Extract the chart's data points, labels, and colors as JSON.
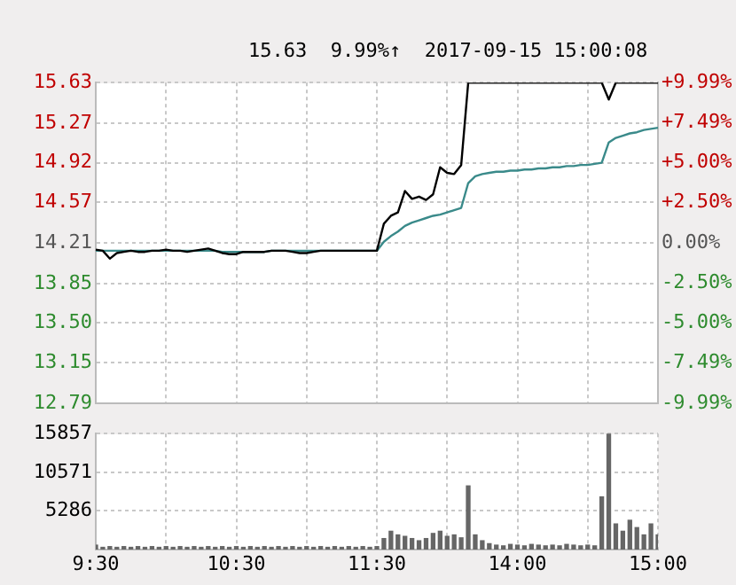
{
  "chart_data": [
    {
      "type": "line",
      "title": "15.63  9.99%↑  2017-09-15 15:00:08",
      "categories": [
        null,
        null,
        null,
        null,
        null,
        null,
        null,
        null,
        null,
        null,
        null,
        null,
        null,
        null,
        null,
        null,
        null,
        null,
        null,
        null,
        null,
        null,
        null,
        null,
        null,
        null,
        null,
        null,
        null,
        null,
        null,
        null,
        null,
        null,
        null,
        null,
        null,
        null,
        null,
        null,
        null,
        null,
        null,
        null,
        null,
        null,
        null,
        null,
        null,
        null,
        null,
        null,
        null,
        null,
        null,
        null,
        null,
        null,
        null,
        null,
        null,
        null,
        null,
        null,
        null,
        null,
        null,
        null,
        null,
        null,
        null,
        null,
        null,
        null,
        null,
        null,
        null,
        null,
        null,
        null,
        null
      ],
      "ylim": [
        12.79,
        15.63
      ],
      "yticks": [
        12.79,
        13.15,
        {
          "value": 13.5,
          "label": "13.50"
        },
        13.85,
        14.21,
        14.57,
        14.92,
        15.27,
        15.63
      ],
      "y2lim": [
        -9.99,
        9.99
      ],
      "y2ticks": [
        {
          "value": -9.99,
          "label": "-9.99%"
        },
        {
          "value": -7.49,
          "label": "-7.49%"
        },
        {
          "value": -5,
          "label": "-5.00%"
        },
        {
          "value": -2.5,
          "label": "-2.50%"
        },
        {
          "value": 0,
          "label": "0.00%"
        },
        {
          "value": 2.5,
          "label": "+2.50%"
        },
        {
          "value": 5,
          "label": "+5.00%"
        },
        {
          "value": 7.49,
          "label": "+7.49%"
        },
        {
          "value": 9.99,
          "label": "+9.99%"
        }
      ],
      "tick_labels": "y",
      "grid": true,
      "marker": "none",
      "line_style": "solid",
      "series": [
        {
          "color": "#000000",
          "values": [
            14.15,
            14.14,
            14.07,
            14.12,
            14.13,
            14.14,
            14.13,
            14.13,
            14.14,
            14.14,
            14.15,
            14.14,
            14.14,
            14.13,
            14.14,
            14.15,
            14.16,
            14.14,
            14.12,
            14.11,
            14.11,
            14.13,
            14.13,
            14.13,
            14.13,
            14.14,
            14.14,
            14.14,
            14.13,
            14.12,
            14.12,
            14.13,
            14.14,
            14.14,
            14.14,
            14.14,
            14.14,
            14.14,
            14.14,
            14.14,
            14.14,
            14.38,
            14.45,
            14.48,
            14.67,
            14.6,
            14.62,
            14.59,
            14.64,
            14.88,
            14.83,
            14.82,
            14.9,
            15.63,
            15.63,
            15.63,
            15.63,
            15.63,
            15.63,
            15.63,
            15.63,
            15.63,
            15.63,
            15.63,
            15.63,
            15.63,
            15.63,
            15.63,
            15.63,
            15.63,
            15.63,
            15.63,
            15.63,
            15.48,
            15.63,
            15.63,
            15.63,
            15.63,
            15.63,
            15.63,
            15.63
          ]
        },
        {
          "color": "#3a8a8a",
          "values": [
            14.14,
            14.14,
            14.14,
            14.14,
            14.14,
            14.14,
            14.14,
            14.14,
            14.14,
            14.14,
            14.14,
            14.14,
            14.14,
            14.14,
            14.14,
            14.14,
            14.14,
            14.14,
            14.13,
            14.13,
            14.13,
            14.13,
            14.13,
            14.13,
            14.13,
            14.14,
            14.14,
            14.14,
            14.14,
            14.14,
            14.14,
            14.14,
            14.14,
            14.14,
            14.14,
            14.14,
            14.14,
            14.14,
            14.14,
            14.14,
            14.14,
            14.22,
            14.27,
            14.31,
            14.36,
            14.39,
            14.41,
            14.43,
            14.45,
            14.46,
            14.48,
            14.5,
            14.52,
            14.74,
            14.8,
            14.82,
            14.83,
            14.84,
            14.84,
            14.85,
            14.85,
            14.86,
            14.86,
            14.87,
            14.87,
            14.88,
            14.88,
            14.89,
            14.89,
            14.9,
            14.9,
            14.91,
            14.92,
            15.1,
            15.14,
            15.16,
            15.18,
            15.19,
            15.21,
            15.22,
            15.23
          ]
        }
      ]
    },
    {
      "type": "bar",
      "categories": [
        "9:30",
        null,
        null,
        null,
        null,
        null,
        null,
        null,
        null,
        null,
        null,
        null,
        null,
        null,
        null,
        null,
        null,
        null,
        null,
        null,
        "10:30",
        null,
        null,
        null,
        null,
        null,
        null,
        null,
        null,
        null,
        null,
        null,
        null,
        null,
        null,
        null,
        null,
        null,
        null,
        null,
        "11:30",
        null,
        null,
        null,
        null,
        null,
        null,
        null,
        null,
        null,
        null,
        null,
        null,
        null,
        null,
        null,
        null,
        null,
        null,
        null,
        "14:00",
        null,
        null,
        null,
        null,
        null,
        null,
        null,
        null,
        null,
        null,
        null,
        null,
        null,
        null,
        null,
        null,
        null,
        null,
        null,
        "15:00"
      ],
      "ylim": [
        0,
        15857
      ],
      "yticks": [
        5286,
        10571,
        15857
      ],
      "grid": true,
      "series": [
        {
          "color": "#666666",
          "values": [
            600,
            300,
            400,
            300,
            400,
            300,
            400,
            300,
            400,
            300,
            400,
            300,
            400,
            300,
            400,
            300,
            400,
            300,
            400,
            300,
            400,
            300,
            400,
            300,
            400,
            300,
            400,
            300,
            400,
            300,
            400,
            300,
            400,
            300,
            400,
            300,
            400,
            300,
            400,
            300,
            400,
            1500,
            2500,
            2000,
            1800,
            1500,
            1200,
            1500,
            2200,
            2500,
            1800,
            2000,
            1600,
            8700,
            2000,
            1200,
            800,
            600,
            500,
            700,
            600,
            500,
            700,
            600,
            500,
            600,
            500,
            700,
            600,
            500,
            600,
            500,
            7200,
            15857,
            3500,
            2500,
            4000,
            3000,
            2000,
            3500,
            2000
          ]
        }
      ]
    }
  ]
}
